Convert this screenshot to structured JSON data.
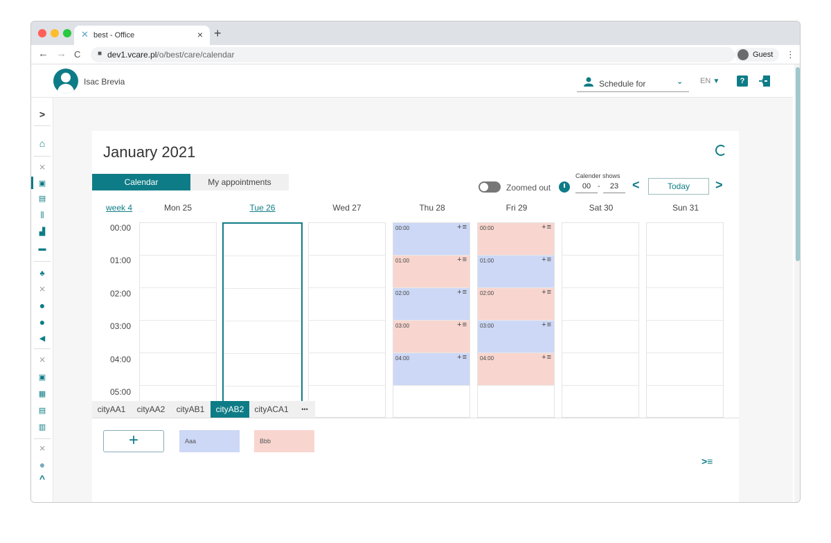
{
  "browser": {
    "tab_title": "best - Office",
    "tab_close": "×",
    "new_tab": "+",
    "url_host": "dev1.vcare.pl",
    "url_path": "/o/best/care/calendar",
    "profile_label": "Guest",
    "menu": "⋮",
    "back": "←",
    "forward": "→",
    "reload": "C"
  },
  "header": {
    "user_name": "Isac Brevia",
    "schedule_for_label": "Schedule for",
    "language": "EN",
    "help_label": "?"
  },
  "sidebar": {
    "expand_label": ">",
    "collapse_label": "^"
  },
  "calendar": {
    "month_title": "January 2021",
    "view_tabs": [
      "Calendar",
      "My appointments"
    ],
    "zoom_label": "Zoomed out",
    "shows_label": "Calender shows",
    "hours_from": "00",
    "hours_sep": "-",
    "hours_to": "23",
    "today_label": "Today",
    "prev_label": "<",
    "next_label": ">",
    "week_label": "week 4",
    "days": [
      "Mon 25",
      "Tue 26",
      "Wed 27",
      "Thu 28",
      "Fri 29",
      "Sat 30",
      "Sun 31"
    ],
    "time_labels": [
      "00:00",
      "01:00",
      "02:00",
      "03:00",
      "04:00",
      "05:00"
    ],
    "thu_events": [
      {
        "time": "00:00",
        "type": "Aaa"
      },
      {
        "time": "01:00",
        "type": "Bbb"
      },
      {
        "time": "02:00",
        "type": "Aaa"
      },
      {
        "time": "03:00",
        "type": "Bbb"
      },
      {
        "time": "04:00",
        "type": "Aaa"
      }
    ],
    "fri_events": [
      {
        "time": "00:00",
        "type": "Bbb"
      },
      {
        "time": "01:00",
        "type": "Aaa"
      },
      {
        "time": "02:00",
        "type": "Bbb"
      },
      {
        "time": "03:00",
        "type": "Aaa"
      },
      {
        "time": "04:00",
        "type": "Bbb"
      }
    ],
    "event_actions": "+≡",
    "cities": [
      "cityAA1",
      "cityAA2",
      "cityAB1",
      "cityAB2",
      "cityACA1",
      "•••"
    ],
    "active_city": "cityAB2",
    "add_label": "+",
    "legend": [
      {
        "name": "Aaa",
        "color": "#cdd8f6"
      },
      {
        "name": "Bbb",
        "color": "#f8d6cf"
      }
    ],
    "list_toggle_label": ">≡"
  },
  "colors": {
    "accent": "#0e7c86",
    "event_a": "#cdd8f6",
    "event_b": "#f8d6cf"
  }
}
